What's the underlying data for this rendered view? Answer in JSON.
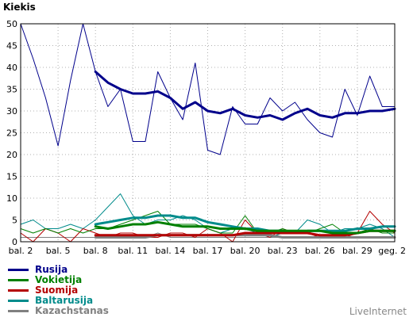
{
  "chart_data": {
    "type": "line",
    "title": "Kiekis",
    "x_labels": [
      "bal. 2",
      "bal. 5",
      "bal. 8",
      "bal. 11",
      "bal. 14",
      "bal. 17",
      "bal. 20",
      "bal. 23",
      "bal. 26",
      "bal. 29",
      "geg. 2"
    ],
    "ylim": [
      0,
      50
    ],
    "yticks": [
      0,
      5,
      10,
      15,
      20,
      25,
      30,
      35,
      40,
      45,
      50
    ],
    "grid": true,
    "legend_position": "bottom-left",
    "days": 31,
    "series": [
      {
        "name": "Rusija",
        "color": "#00008b",
        "values": [
          50,
          42,
          33,
          22,
          37,
          50,
          39,
          31,
          35,
          23,
          23,
          39,
          33,
          28,
          41,
          21,
          20,
          31,
          27,
          27,
          33,
          30,
          32,
          28,
          25,
          24,
          35,
          29,
          38,
          31,
          31
        ]
      },
      {
        "name": "Vokietija",
        "color": "#008000",
        "values": [
          3,
          2,
          3,
          2,
          3,
          2,
          3,
          3,
          4,
          5,
          6,
          7,
          4,
          4,
          4,
          3,
          2,
          2,
          6,
          2,
          2,
          3,
          2,
          2,
          3,
          4,
          2,
          2,
          3,
          2,
          2
        ]
      },
      {
        "name": "Suomija",
        "color": "#b40000",
        "values": [
          2,
          0,
          3,
          2,
          0,
          3,
          2,
          1,
          2,
          2,
          1,
          1,
          2,
          2,
          1,
          3,
          2,
          0,
          5,
          2,
          1,
          3,
          2,
          2,
          1,
          1,
          1,
          2,
          7,
          4,
          2
        ]
      },
      {
        "name": "Baltarusija",
        "color": "#008b8b",
        "values": [
          4,
          5,
          3,
          3,
          4,
          3,
          5,
          8,
          11,
          6,
          4,
          5,
          5,
          6,
          5,
          3,
          2,
          3,
          3,
          2,
          1,
          2,
          2,
          5,
          4,
          2,
          3,
          3,
          4,
          3,
          1
        ]
      },
      {
        "name": "Kazachstanas",
        "color": "#808080",
        "values": [
          1,
          1,
          1,
          1,
          1,
          1,
          1,
          1,
          1,
          1,
          1,
          2,
          1,
          1,
          1,
          1,
          1,
          1,
          1,
          1,
          1,
          1,
          1,
          1,
          1,
          1,
          1,
          1,
          1,
          1,
          1
        ]
      }
    ],
    "trend_series": [
      {
        "name": "Rusija",
        "color": "#00008b",
        "values": [
          null,
          null,
          null,
          null,
          null,
          null,
          39,
          36.5,
          35,
          34,
          34,
          34.5,
          33,
          30.5,
          32,
          30,
          29.5,
          30.5,
          29,
          28.5,
          29,
          28,
          29.5,
          30.5,
          29,
          28.5,
          29.5,
          29.5,
          30,
          30,
          30.5
        ]
      },
      {
        "name": "Vokietija",
        "color": "#008000",
        "values": [
          null,
          null,
          null,
          null,
          null,
          null,
          3.5,
          3,
          3.5,
          4,
          4,
          4.5,
          4,
          3.5,
          3.5,
          3.5,
          3,
          3,
          3,
          2.5,
          2.5,
          2.5,
          2.5,
          2.5,
          2.5,
          2,
          2,
          2,
          2.5,
          2.5,
          2.5
        ]
      },
      {
        "name": "Suomija",
        "color": "#b40000",
        "values": [
          null,
          null,
          null,
          null,
          null,
          null,
          1.5,
          1.5,
          1.5,
          1.5,
          1.5,
          1.5,
          1.5,
          1.5,
          1.5,
          1.5,
          1.5,
          1.5,
          2,
          2,
          2,
          2,
          2,
          2,
          1.5,
          1.5,
          1.5,
          2,
          2.5,
          2.5,
          2.5
        ]
      },
      {
        "name": "Baltarusija",
        "color": "#008b8b",
        "values": [
          null,
          null,
          null,
          null,
          null,
          null,
          4,
          4.5,
          5,
          5.5,
          5.5,
          6,
          6,
          5.5,
          5.5,
          4.5,
          4,
          3.5,
          3,
          3,
          2.5,
          2.5,
          2,
          2.5,
          2.5,
          2.5,
          2.5,
          3,
          3,
          3.5,
          3.5
        ]
      },
      {
        "name": "Kazachstanas",
        "color": "#808080",
        "values": [
          null,
          null,
          null,
          null,
          null,
          null,
          1,
          1,
          1,
          1,
          1,
          1.5,
          1.5,
          1.5,
          1.5,
          1.5,
          1.5,
          1.5,
          1.5,
          1.5,
          1.5,
          1,
          1,
          1,
          1,
          1,
          1,
          1,
          1,
          1,
          1
        ]
      }
    ]
  },
  "brand": "LiveInternet"
}
